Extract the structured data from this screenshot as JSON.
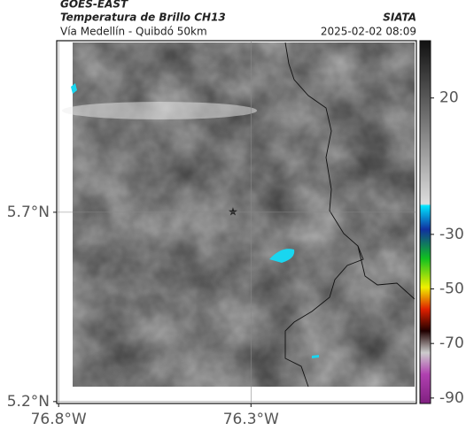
{
  "header": {
    "title": "GOES-EAST",
    "subtitle": "Temperatura de Brillo CH13",
    "route": "Vía Medellín - Quibdó 50km",
    "agency": "SIATA",
    "datetime": "2025-02-02 08:09"
  },
  "map": {
    "xlim": [
      -76.805,
      -75.87
    ],
    "ylim": [
      5.195,
      6.153
    ],
    "xticks": [
      {
        "value": -76.8,
        "label": "76.8°W"
      },
      {
        "value": -76.3,
        "label": "76.3°W"
      }
    ],
    "yticks": [
      {
        "value": 5.7,
        "label": "5.7°N"
      },
      {
        "value": 5.2,
        "label": "5.2°N"
      }
    ]
  },
  "colorbar": {
    "lim": [
      41,
      -92
    ],
    "ticks": [
      20,
      -30,
      -50,
      -70,
      -90
    ]
  }
}
